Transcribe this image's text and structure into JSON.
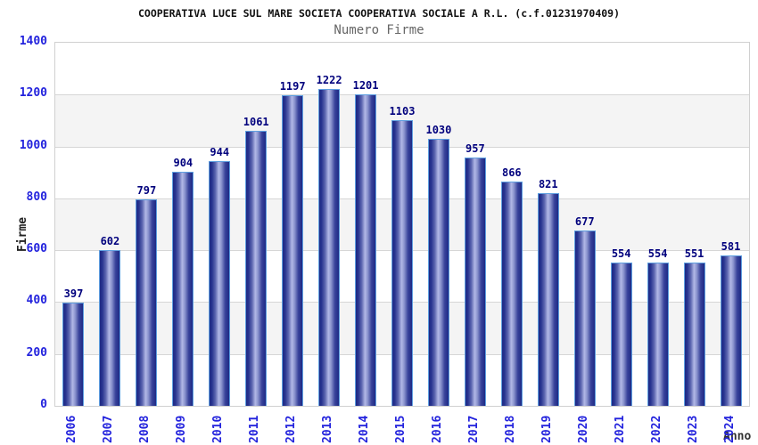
{
  "header": {
    "title": "COOPERATIVA LUCE SUL MARE SOCIETA COOPERATIVA SOCIALE A R.L. (c.f.01231970409)",
    "subtitle": "Numero Firme"
  },
  "chart_data": {
    "type": "bar",
    "title": "COOPERATIVA LUCE SUL MARE SOCIETA COOPERATIVA SOCIALE A R.L. (c.f.01231970409)",
    "subtitle": "Numero Firme",
    "xlabel": "Anno",
    "ylabel": "Firme",
    "categories": [
      "2006",
      "2007",
      "2008",
      "2009",
      "2010",
      "2011",
      "2012",
      "2013",
      "2014",
      "2015",
      "2016",
      "2017",
      "2018",
      "2019",
      "2020",
      "2021",
      "2022",
      "2023",
      "2024"
    ],
    "values": [
      397,
      602,
      797,
      904,
      944,
      1061,
      1197,
      1222,
      1201,
      1103,
      1030,
      957,
      866,
      821,
      677,
      554,
      554,
      551,
      581
    ],
    "ylim": [
      0,
      1400
    ],
    "y_ticks": [
      1400,
      1200,
      1000,
      800,
      600,
      400,
      200,
      0
    ],
    "grid": "horizontal gridlines every 200 with alternating white/gray bands",
    "legend": "none",
    "colors": {
      "bar_dark": "#1e2a85",
      "bar_light": "#b2b8e6",
      "bar_border": "#5e9fe0",
      "value_label": "#00007d",
      "axis_tick": "#2323dd",
      "band_gray": "#f4f4f4",
      "grid_line": "#d6d6d6",
      "plot_border": "#d0d0d0",
      "title": "#111111",
      "subtitle": "#666666"
    }
  }
}
